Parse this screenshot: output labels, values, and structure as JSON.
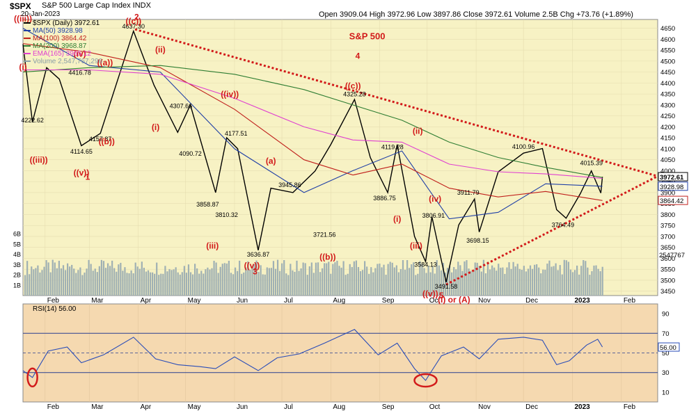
{
  "header": {
    "symbol": "$SPX",
    "name_line": "S&P 500 Large Cap Index  INDX",
    "date": "20-Jan-2023",
    "ohlc": "Open 3909.04  High 3972.96  Low 3897.86  Close 3972.61  Volume 2.5B  Chg +73.76 (+1.89%)"
  },
  "legend": [
    {
      "label": "$SPX (Daily) 3972.61",
      "color": "#000000"
    },
    {
      "label": "MA(50) 3928.98",
      "color": "#1f3fa6"
    },
    {
      "label": "MA(100) 3864.42",
      "color": "#c0201c"
    },
    {
      "label": "MA(200) 3968.87",
      "color": "#2e7d32"
    },
    {
      "label": "EMA(165) 3965.12",
      "color": "#e040d0"
    },
    {
      "label": "Volume 2,547,767,296",
      "color": "#8aa0a8"
    }
  ],
  "colors": {
    "price_bg": "#f7f2c4",
    "rsi_bg": "#f5d9b0",
    "volume": "#9fb0b3",
    "wave_red": "#d21a1a",
    "price_line": "#000000",
    "ma50": "#1f3fa6",
    "ma100": "#c0201c",
    "ma200": "#2e7d32",
    "ema165": "#e040d0",
    "rsi_line": "#2a4db8"
  },
  "chart_data": [
    {
      "type": "line",
      "title": "S&P 500",
      "ylim": [
        3430,
        4690
      ],
      "y_ticks": [
        3450,
        3500,
        3550,
        3600,
        3650,
        3700,
        3750,
        3800,
        3850,
        3900,
        3950,
        4000,
        4050,
        4100,
        4150,
        4200,
        4250,
        4300,
        4350,
        4400,
        4450,
        4500,
        4550,
        4600,
        4650
      ],
      "x_labels": [
        "Feb",
        "Mar",
        "Apr",
        "May",
        "Jun",
        "Jul",
        "Aug",
        "Sep",
        "Oct",
        "Nov",
        "Dec",
        "2023",
        "Feb"
      ],
      "x_label_dates": [
        "2022-02-01",
        "2022-03-01",
        "2022-04-01",
        "2022-05-01",
        "2022-06-01",
        "2022-07-01",
        "2022-08-01",
        "2022-09-01",
        "2022-10-01",
        "2022-11-01",
        "2022-12-01",
        "2023-01-01",
        "2023-02-01"
      ],
      "x_range": [
        "2022-01-18",
        "2023-02-24"
      ],
      "series": [
        {
          "name": "$SPX (Daily)",
          "x": [
            "2022-01-18",
            "2022-01-24",
            "2022-02-02",
            "2022-02-10",
            "2022-02-24",
            "2022-03-08",
            "2022-03-29",
            "2022-04-11",
            "2022-04-26",
            "2022-05-04",
            "2022-05-20",
            "2022-05-27",
            "2022-06-03",
            "2022-06-16",
            "2022-06-24",
            "2022-07-08",
            "2022-07-22",
            "2022-08-01",
            "2022-08-16",
            "2022-08-26",
            "2022-09-06",
            "2022-09-12",
            "2022-09-23",
            "2022-09-30",
            "2022-10-04",
            "2022-10-13",
            "2022-10-21",
            "2022-10-31",
            "2022-11-03",
            "2022-11-15",
            "2022-12-01",
            "2022-12-13",
            "2022-12-22",
            "2022-12-28",
            "2023-01-06",
            "2023-01-13",
            "2023-01-19",
            "2023-01-20"
          ],
          "values": [
            4577,
            4222,
            4470,
            4418,
            4114,
            4170,
            4637,
            4390,
            4175,
            4300,
            3900,
            4150,
            4100,
            3637,
            3920,
            3900,
            3998,
            4120,
            4325,
            4060,
            3900,
            4119,
            3700,
            3585,
            3790,
            3491,
            3752,
            3871,
            3720,
            3995,
            4080,
            4101,
            3822,
            3783,
            3895,
            3999,
            3898,
            3972
          ]
        },
        {
          "name": "MA(50)",
          "x": [
            "2022-01-18",
            "2022-03-01",
            "2022-04-15",
            "2022-06-01",
            "2022-07-15",
            "2022-08-15",
            "2022-09-15",
            "2022-10-15",
            "2022-11-15",
            "2022-12-15",
            "2023-01-20"
          ],
          "values": [
            4650,
            4480,
            4450,
            4100,
            3900,
            4000,
            4090,
            3780,
            3810,
            3940,
            3929
          ]
        },
        {
          "name": "MA(100)",
          "x": [
            "2022-01-18",
            "2022-03-01",
            "2022-04-15",
            "2022-06-01",
            "2022-07-15",
            "2022-08-15",
            "2022-09-15",
            "2022-10-15",
            "2022-11-15",
            "2022-12-15",
            "2023-01-20"
          ],
          "values": [
            4580,
            4540,
            4470,
            4280,
            4050,
            3980,
            4030,
            3920,
            3880,
            3905,
            3864
          ]
        },
        {
          "name": "MA(200)",
          "x": [
            "2022-01-18",
            "2022-03-01",
            "2022-04-15",
            "2022-06-01",
            "2022-07-15",
            "2022-08-15",
            "2022-09-15",
            "2022-10-15",
            "2022-11-15",
            "2022-12-15",
            "2023-01-20"
          ],
          "values": [
            4450,
            4470,
            4480,
            4440,
            4370,
            4300,
            4230,
            4130,
            4060,
            4015,
            3969
          ]
        },
        {
          "name": "EMA(165)",
          "x": [
            "2022-01-18",
            "2022-03-01",
            "2022-04-15",
            "2022-06-01",
            "2022-07-15",
            "2022-08-15",
            "2022-09-15",
            "2022-10-15",
            "2022-11-15",
            "2022-12-15",
            "2023-01-20"
          ],
          "values": [
            4460,
            4460,
            4440,
            4330,
            4200,
            4140,
            4130,
            4030,
            3995,
            3985,
            3965
          ]
        }
      ],
      "volume": {
        "y_tick_labels": [
          "1B",
          "2B",
          "3B",
          "4B",
          "5B",
          "6B"
        ],
        "ylim": [
          0,
          9.5
        ],
        "last_label": "2547767",
        "typical_range": [
          2.0,
          3.5
        ]
      },
      "price_tags": [
        "3972.61",
        "3928.98",
        "3864.42"
      ],
      "annotations": [
        {
          "text": "S&P 500",
          "x": "2022-08-24",
          "y": 4600
        },
        {
          "text": "4637.30",
          "x": "2022-03-29",
          "y": 4648
        },
        {
          "text": "4416.78",
          "x": "2022-02-23",
          "y": 4438
        },
        {
          "text": "4222.62",
          "x": "2022-01-24",
          "y": 4220
        },
        {
          "text": "4114.65",
          "x": "2022-02-24",
          "y": 4078
        },
        {
          "text": "4157.87",
          "x": "2022-03-08",
          "y": 4135
        },
        {
          "text": "4307.66",
          "x": "2022-04-28",
          "y": 4285
        },
        {
          "text": "4090.72",
          "x": "2022-05-04",
          "y": 4068
        },
        {
          "text": "4177.51",
          "x": "2022-06-02",
          "y": 4160
        },
        {
          "text": "3858.87",
          "x": "2022-05-15",
          "y": 3837
        },
        {
          "text": "3810.32",
          "x": "2022-05-27",
          "y": 3788
        },
        {
          "text": "3636.87",
          "x": "2022-06-16",
          "y": 3608
        },
        {
          "text": "3945.86",
          "x": "2022-07-06",
          "y": 3925
        },
        {
          "text": "3721.56",
          "x": "2022-07-28",
          "y": 3698
        },
        {
          "text": "4325.28",
          "x": "2022-08-16",
          "y": 4340
        },
        {
          "text": "4119.28",
          "x": "2022-09-09",
          "y": 4098
        },
        {
          "text": "3886.75",
          "x": "2022-09-04",
          "y": 3865
        },
        {
          "text": "3806.91",
          "x": "2022-10-05",
          "y": 3785
        },
        {
          "text": "3584.13",
          "x": "2022-09-30",
          "y": 3562
        },
        {
          "text": "3491.58",
          "x": "2022-10-13",
          "y": 3462
        },
        {
          "text": "3911.79",
          "x": "2022-10-27",
          "y": 3890
        },
        {
          "text": "3698.15",
          "x": "2022-11-02",
          "y": 3672
        },
        {
          "text": "4100.96",
          "x": "2022-12-01",
          "y": 4100
        },
        {
          "text": "3764.49",
          "x": "2022-12-26",
          "y": 3742
        },
        {
          "text": "4015.39",
          "x": "2023-01-13",
          "y": 4025
        }
      ],
      "wave_labels": [
        {
          "text": "(i)",
          "x": "2022-01-18",
          "y": 4460
        },
        {
          "text": "((iii))",
          "x": "2022-01-18",
          "y": 4680
        },
        {
          "text": "2",
          "x": "2022-03-31",
          "y": 4688
        },
        {
          "text": "((c))",
          "x": "2022-03-29",
          "y": 4670
        },
        {
          "text": "(iv)",
          "x": "2022-02-23",
          "y": 4520
        },
        {
          "text": "((a))",
          "x": "2022-03-11",
          "y": 4480
        },
        {
          "text": "(ii)",
          "x": "2022-04-15",
          "y": 4540
        },
        {
          "text": "((iii))",
          "x": "2022-01-28",
          "y": 4036
        },
        {
          "text": "((v))",
          "x": "2022-02-24",
          "y": 3978
        },
        {
          "text": "1",
          "x": "2022-02-28",
          "y": 3958
        },
        {
          "text": "((b))",
          "x": "2022-03-12",
          "y": 4120
        },
        {
          "text": "(i)",
          "x": "2022-04-12",
          "y": 4185
        },
        {
          "text": "((iv))",
          "x": "2022-05-29",
          "y": 4336
        },
        {
          "text": "(a)",
          "x": "2022-06-24",
          "y": 4032
        },
        {
          "text": "(iii)",
          "x": "2022-05-18",
          "y": 3645
        },
        {
          "text": "((v))",
          "x": "2022-06-12",
          "y": 3553
        },
        {
          "text": "3",
          "x": "2022-06-14",
          "y": 3527
        },
        {
          "text": "((b))",
          "x": "2022-07-30",
          "y": 3593
        },
        {
          "text": "4",
          "x": "2022-08-18",
          "y": 4510
        },
        {
          "text": "((c))",
          "x": "2022-08-15",
          "y": 4374
        },
        {
          "text": "(ii)",
          "x": "2022-09-25",
          "y": 4168
        },
        {
          "text": "(i)",
          "x": "2022-09-12",
          "y": 3767
        },
        {
          "text": "(iv)",
          "x": "2022-10-06",
          "y": 3858
        },
        {
          "text": "(iii)",
          "x": "2022-09-24",
          "y": 3645
        },
        {
          "text": "((v))",
          "x": "2022-10-03",
          "y": 3426
        },
        {
          "text": "5",
          "x": "2022-10-10",
          "y": 3418
        },
        {
          "text": "(I) or (A)",
          "x": "2022-10-18",
          "y": 3398
        }
      ]
    },
    {
      "type": "line",
      "title": "RSI(14) 56.00",
      "ylim": [
        0,
        100
      ],
      "y_ticks": [
        10,
        30,
        50,
        70,
        90
      ],
      "ref_lines": [
        30,
        70
      ],
      "last_label": "56.00",
      "x_labels": [
        "Feb",
        "Mar",
        "Apr",
        "May",
        "Jun",
        "Jul",
        "Aug",
        "Sep",
        "Oct",
        "Nov",
        "Dec",
        "2023",
        "Feb"
      ],
      "series": [
        {
          "name": "RSI(14)",
          "x": [
            "2022-01-18",
            "2022-01-24",
            "2022-02-03",
            "2022-02-15",
            "2022-02-24",
            "2022-03-10",
            "2022-03-29",
            "2022-04-12",
            "2022-04-26",
            "2022-05-10",
            "2022-05-20",
            "2022-06-01",
            "2022-06-16",
            "2022-06-28",
            "2022-07-12",
            "2022-07-28",
            "2022-08-16",
            "2022-08-31",
            "2022-09-12",
            "2022-09-23",
            "2022-09-30",
            "2022-10-10",
            "2022-10-24",
            "2022-11-03",
            "2022-11-15",
            "2022-12-01",
            "2022-12-13",
            "2022-12-22",
            "2022-12-30",
            "2023-01-10",
            "2023-01-17",
            "2023-01-20"
          ],
          "values": [
            32,
            25,
            52,
            56,
            40,
            48,
            66,
            44,
            38,
            36,
            34,
            46,
            32,
            45,
            49,
            60,
            74,
            48,
            60,
            34,
            22,
            47,
            56,
            44,
            64,
            66,
            63,
            38,
            42,
            58,
            64,
            56
          ]
        }
      ]
    }
  ]
}
